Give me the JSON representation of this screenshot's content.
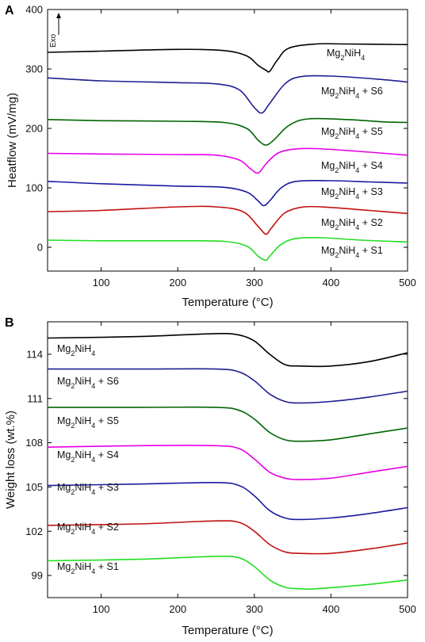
{
  "chart_data": [
    {
      "panel": "A",
      "type": "line",
      "xlabel": "Temperature (°C)",
      "ylabel": "Heatflow (mV/mg)",
      "xlim": [
        30,
        500
      ],
      "ylim": [
        -40,
        400
      ],
      "xticks": [
        100,
        200,
        300,
        400,
        500
      ],
      "yticks": [
        0,
        100,
        200,
        300,
        400
      ],
      "annotation": "Exo",
      "series": [
        {
          "name": "Mg2NiH4",
          "color": "#000000",
          "x": [
            30,
            100,
            200,
            260,
            290,
            305,
            315,
            320,
            330,
            345,
            380,
            420,
            500
          ],
          "y": [
            328,
            330,
            333,
            331,
            322,
            306,
            298,
            296,
            315,
            335,
            342,
            342,
            341
          ]
        },
        {
          "name": "Mg2NiH4 + S6",
          "color": "#1f1f8f",
          "x": [
            30,
            100,
            200,
            250,
            280,
            300,
            310,
            320,
            340,
            360,
            400,
            460,
            500
          ],
          "y": [
            285,
            280,
            277,
            275,
            265,
            235,
            226,
            242,
            275,
            287,
            288,
            283,
            278
          ]
        },
        {
          "name": "Mg2NiH4 + S5",
          "color": "#006400",
          "x": [
            30,
            100,
            200,
            260,
            290,
            305,
            315,
            325,
            345,
            370,
            420,
            470,
            500
          ],
          "y": [
            215,
            213,
            212,
            210,
            200,
            180,
            172,
            180,
            205,
            216,
            215,
            211,
            210
          ]
        },
        {
          "name": "Mg2NiH4 + S4",
          "color": "#e600e6",
          "x": [
            30,
            100,
            200,
            250,
            280,
            295,
            305,
            315,
            330,
            350,
            380,
            430,
            500
          ],
          "y": [
            158,
            157,
            156,
            155,
            147,
            132,
            125,
            140,
            158,
            165,
            166,
            162,
            155
          ]
        },
        {
          "name": "Mg2NiH4 + S3",
          "color": "#1a1aa0",
          "x": [
            30,
            100,
            200,
            260,
            290,
            305,
            312,
            320,
            335,
            355,
            400,
            450,
            500
          ],
          "y": [
            111,
            107,
            103,
            101,
            93,
            78,
            70,
            78,
            100,
            111,
            112,
            110,
            108
          ]
        },
        {
          "name": "Mg2NiH4 + S2",
          "color": "#c01010",
          "x": [
            30,
            100,
            200,
            250,
            285,
            305,
            315,
            322,
            340,
            365,
            400,
            450,
            500
          ],
          "y": [
            60,
            62,
            68,
            68,
            60,
            35,
            22,
            32,
            58,
            68,
            67,
            62,
            57
          ]
        },
        {
          "name": "Mg2NiH4 + S1",
          "color": "#22dd22",
          "x": [
            30,
            100,
            200,
            260,
            290,
            305,
            315,
            320,
            335,
            355,
            390,
            440,
            500
          ],
          "y": [
            12,
            11,
            11,
            10,
            2,
            -15,
            -22,
            -15,
            5,
            15,
            16,
            12,
            9
          ]
        }
      ]
    },
    {
      "panel": "B",
      "type": "line",
      "xlabel": "Temperature (°C)",
      "ylabel": "Weight loss (wt.%)",
      "xlim": [
        30,
        500
      ],
      "ylim": [
        97.5,
        116.2
      ],
      "xticks": [
        100,
        200,
        300,
        400,
        500
      ],
      "yticks": [
        99,
        102,
        105,
        108,
        111,
        114
      ],
      "series": [
        {
          "name": "Mg2NiH4",
          "color": "#000000",
          "x": [
            30,
            150,
            250,
            280,
            300,
            320,
            340,
            360,
            400,
            450,
            500
          ],
          "y": [
            115.1,
            115.2,
            115.4,
            115.3,
            114.9,
            114.0,
            113.3,
            113.2,
            113.2,
            113.5,
            114.1
          ]
        },
        {
          "name": "Mg2NiH4 + S6",
          "color": "#1f1f8f",
          "x": [
            30,
            150,
            250,
            280,
            300,
            320,
            340,
            360,
            400,
            450,
            500
          ],
          "y": [
            113.0,
            113.0,
            113.0,
            112.8,
            112.2,
            111.3,
            110.8,
            110.7,
            110.8,
            111.1,
            111.5
          ]
        },
        {
          "name": "Mg2NiH4 + S5",
          "color": "#006400",
          "x": [
            30,
            150,
            250,
            280,
            300,
            320,
            340,
            360,
            400,
            450,
            500
          ],
          "y": [
            110.4,
            110.4,
            110.4,
            110.2,
            109.6,
            108.7,
            108.2,
            108.1,
            108.2,
            108.6,
            109.0
          ]
        },
        {
          "name": "Mg2NiH4 + S4",
          "color": "#e600e6",
          "x": [
            30,
            150,
            250,
            280,
            300,
            320,
            340,
            360,
            400,
            450,
            500
          ],
          "y": [
            107.7,
            107.8,
            107.8,
            107.6,
            106.9,
            106.0,
            105.6,
            105.5,
            105.6,
            106.0,
            106.4
          ]
        },
        {
          "name": "Mg2NiH4 + S3",
          "color": "#1a1aa0",
          "x": [
            30,
            150,
            250,
            280,
            300,
            320,
            340,
            360,
            400,
            450,
            500
          ],
          "y": [
            105.1,
            105.2,
            105.3,
            105.1,
            104.4,
            103.4,
            102.9,
            102.8,
            102.9,
            103.2,
            103.6
          ]
        },
        {
          "name": "Mg2NiH4 + S2",
          "color": "#c01010",
          "x": [
            30,
            150,
            250,
            280,
            300,
            320,
            340,
            360,
            400,
            450,
            500
          ],
          "y": [
            102.4,
            102.5,
            102.7,
            102.6,
            102.0,
            101.1,
            100.6,
            100.5,
            100.5,
            100.8,
            101.2
          ]
        },
        {
          "name": "Mg2NiH4 + S1",
          "color": "#22dd22",
          "x": [
            30,
            150,
            250,
            280,
            300,
            320,
            340,
            360,
            380,
            450,
            500
          ],
          "y": [
            100.0,
            100.1,
            100.3,
            100.2,
            99.6,
            98.7,
            98.2,
            98.1,
            98.1,
            98.4,
            98.7
          ]
        }
      ]
    }
  ]
}
